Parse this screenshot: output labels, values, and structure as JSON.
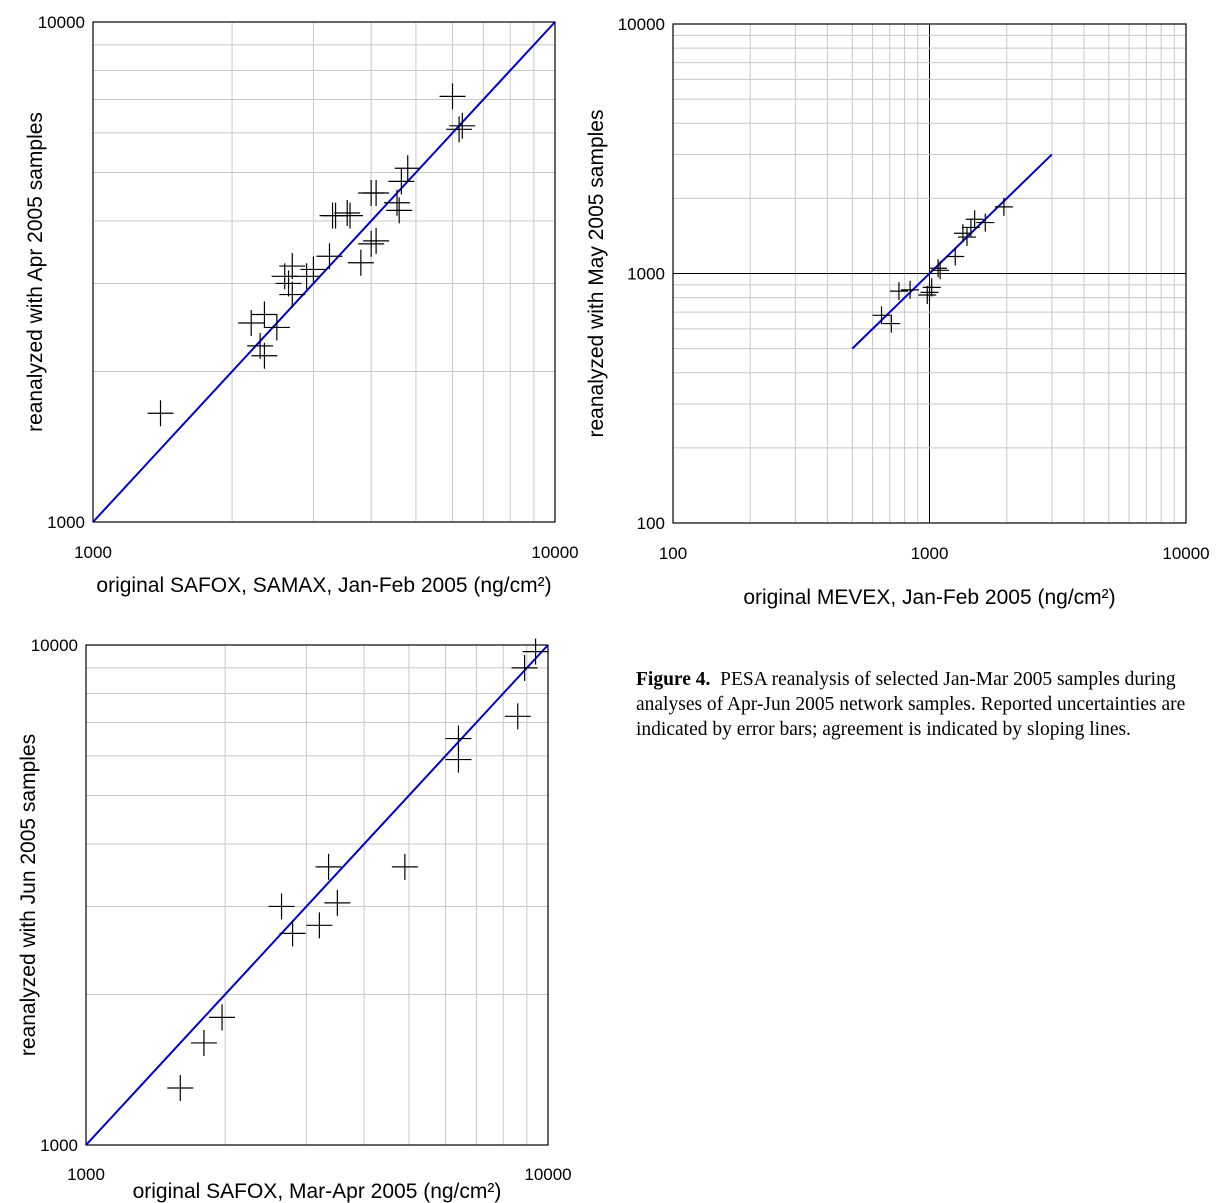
{
  "caption": {
    "label": "Figure 4.",
    "text": "PESA reanalysis of selected Jan-Mar 2005 samples during analyses of Apr-Jun 2005 network samples.  Reported uncertainties are indicated by error bars; agreement is indicated by sloping lines."
  },
  "chart_data": [
    {
      "type": "scatter",
      "xlabel": "original SAFOX, SAMAX, Jan-Feb 2005 (ng/cm²)",
      "ylabel": "reanalyzed with Apr 2005 samples",
      "xscale": "log",
      "yscale": "log",
      "xlim": [
        1000,
        10000
      ],
      "ylim": [
        1000,
        10000
      ],
      "xticks": [
        "1000",
        "10000"
      ],
      "yticks": [
        "1000",
        "10000"
      ],
      "grid": true,
      "agreement_line": {
        "x": [
          1000,
          10000
        ],
        "y": [
          1000,
          10000
        ],
        "color": "#0000cc"
      },
      "points": [
        [
          1400,
          1650
        ],
        [
          2200,
          2500
        ],
        [
          2350,
          2600
        ],
        [
          2300,
          2250
        ],
        [
          2350,
          2150
        ],
        [
          2500,
          2450
        ],
        [
          2600,
          3100
        ],
        [
          2650,
          3000
        ],
        [
          2700,
          3250
        ],
        [
          2700,
          2850
        ],
        [
          2900,
          3100
        ],
        [
          3000,
          3200
        ],
        [
          3300,
          4100
        ],
        [
          3350,
          4100
        ],
        [
          3600,
          4100
        ],
        [
          3550,
          4150
        ],
        [
          3250,
          3400
        ],
        [
          3800,
          3300
        ],
        [
          4000,
          3600
        ],
        [
          4100,
          3650
        ],
        [
          4000,
          4550
        ],
        [
          4100,
          4550
        ],
        [
          4550,
          4350
        ],
        [
          4650,
          4800
        ],
        [
          4600,
          4200
        ],
        [
          4800,
          5100
        ],
        [
          6000,
          7100
        ],
        [
          6200,
          6100
        ],
        [
          6300,
          6200
        ]
      ]
    },
    {
      "type": "scatter",
      "xlabel": "original MEVEX, Jan-Feb 2005 (ng/cm²)",
      "ylabel": "reanalyzed with May 2005 samples",
      "xscale": "log",
      "yscale": "log",
      "xlim": [
        100,
        10000
      ],
      "ylim": [
        100,
        10000
      ],
      "xticks": [
        "100",
        "1000",
        "10000"
      ],
      "yticks": [
        "100",
        "1000",
        "10000"
      ],
      "grid": true,
      "agreement_line": {
        "x": [
          500,
          3000
        ],
        "y": [
          500,
          3000
        ],
        "color": "#0000cc"
      },
      "points": [
        [
          650,
          680
        ],
        [
          710,
          630
        ],
        [
          760,
          850
        ],
        [
          840,
          860
        ],
        [
          980,
          820
        ],
        [
          1000,
          840
        ],
        [
          1020,
          880
        ],
        [
          1080,
          1050
        ],
        [
          1100,
          1030
        ],
        [
          1260,
          1170
        ],
        [
          1350,
          1450
        ],
        [
          1400,
          1400
        ],
        [
          1450,
          1530
        ],
        [
          1500,
          1650
        ],
        [
          1650,
          1600
        ],
        [
          1950,
          1850
        ]
      ]
    },
    {
      "type": "scatter",
      "xlabel": "original SAFOX, Mar-Apr 2005 (ng/cm²)",
      "ylabel": "reanalyzed with Jun 2005 samples",
      "xscale": "log",
      "yscale": "log",
      "xlim": [
        1000,
        10000
      ],
      "ylim": [
        1000,
        10000
      ],
      "xticks": [
        "1000",
        "10000"
      ],
      "yticks": [
        "1000",
        "10000"
      ],
      "grid": true,
      "agreement_line": {
        "x": [
          1000,
          10000
        ],
        "y": [
          1000,
          10000
        ],
        "color": "#0000cc"
      },
      "points": [
        [
          1600,
          1300
        ],
        [
          1800,
          1600
        ],
        [
          1970,
          1800
        ],
        [
          2650,
          3000
        ],
        [
          2800,
          2650
        ],
        [
          3200,
          2750
        ],
        [
          3350,
          3600
        ],
        [
          3500,
          3050
        ],
        [
          4900,
          3600
        ],
        [
          6400,
          5900
        ],
        [
          6400,
          6500
        ],
        [
          8600,
          7200
        ],
        [
          8900,
          9000
        ],
        [
          9400,
          9700
        ]
      ]
    }
  ]
}
